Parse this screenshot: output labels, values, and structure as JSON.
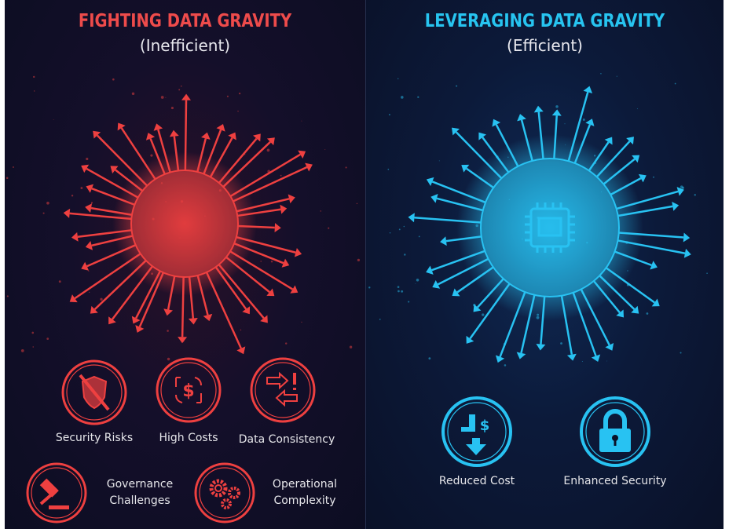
{
  "left_panel": {
    "title": "FIGHTING DATA GRAVITY",
    "subtitle": "(Inefficient)",
    "accent_color": "#ee4040",
    "items": [
      {
        "label": "Security Risks",
        "icon": "shield-crossed-icon"
      },
      {
        "label": "High Costs",
        "icon": "dollar-cycle-icon"
      },
      {
        "label": "Data Consistency",
        "icon": "arrows-exclamation-icon"
      },
      {
        "label": "Governance Challenges",
        "line1": "Governance",
        "line2": "Challenges",
        "icon": "gavel-icon"
      },
      {
        "label": "Operational Complexity",
        "line1": "Operational",
        "line2": "Complexity",
        "icon": "gears-icon"
      }
    ]
  },
  "right_panel": {
    "title": "LEVERAGING DATA GRAVITY",
    "subtitle": "(Efficient)",
    "accent_color": "#28c2f2",
    "items": [
      {
        "label": "Reduced Cost",
        "icon": "cost-down-icon"
      },
      {
        "label": "Enhanced Security",
        "icon": "padlock-icon"
      }
    ]
  }
}
